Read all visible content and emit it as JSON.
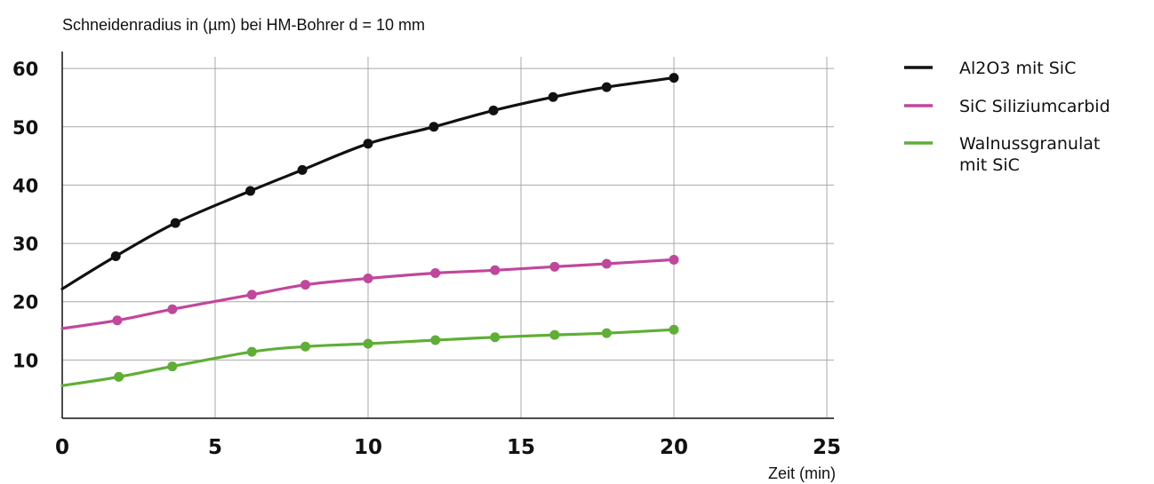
{
  "chart_data": {
    "type": "line",
    "ylabel": "Schneidenradius in (µm) bei HM-Bohrer d = 10 mm",
    "xlabel": "Zeit (min)",
    "xlim": [
      0,
      25
    ],
    "ylim": [
      0,
      62
    ],
    "x_ticks": [
      0,
      5,
      10,
      15,
      20,
      25
    ],
    "y_ticks": [
      10,
      20,
      30,
      40,
      50,
      60
    ],
    "grid": true,
    "legend_position": "right",
    "series": [
      {
        "name": "Al2O3 mit SiC",
        "color": "#111111",
        "line_start": [
          0,
          22.2
        ],
        "points": [
          [
            1.75,
            27.8
          ],
          [
            3.7,
            33.5
          ],
          [
            6.15,
            39.0
          ],
          [
            7.85,
            42.6
          ],
          [
            10.0,
            47.1
          ],
          [
            12.15,
            50.0
          ],
          [
            14.1,
            52.8
          ],
          [
            16.05,
            55.1
          ],
          [
            17.8,
            56.8
          ],
          [
            20.0,
            58.4
          ]
        ]
      },
      {
        "name": "SiC Siliziumcarbid",
        "color": "#c0479c",
        "line_start": [
          0,
          15.4
        ],
        "points": [
          [
            1.8,
            16.8
          ],
          [
            3.6,
            18.7
          ],
          [
            6.2,
            21.2
          ],
          [
            7.95,
            22.9
          ],
          [
            10.0,
            24.0
          ],
          [
            12.2,
            24.9
          ],
          [
            14.15,
            25.4
          ],
          [
            16.1,
            26.0
          ],
          [
            17.8,
            26.5
          ],
          [
            20.0,
            27.2
          ]
        ]
      },
      {
        "name": "Walnussgranulat\nmit SiC",
        "color": "#5fae35",
        "line_start": [
          0,
          5.6
        ],
        "points": [
          [
            1.85,
            7.1
          ],
          [
            3.6,
            8.9
          ],
          [
            6.2,
            11.4
          ],
          [
            7.95,
            12.3
          ],
          [
            10.0,
            12.8
          ],
          [
            12.2,
            13.4
          ],
          [
            14.15,
            13.9
          ],
          [
            16.1,
            14.3
          ],
          [
            17.8,
            14.6
          ],
          [
            20.0,
            15.2
          ]
        ]
      }
    ]
  }
}
